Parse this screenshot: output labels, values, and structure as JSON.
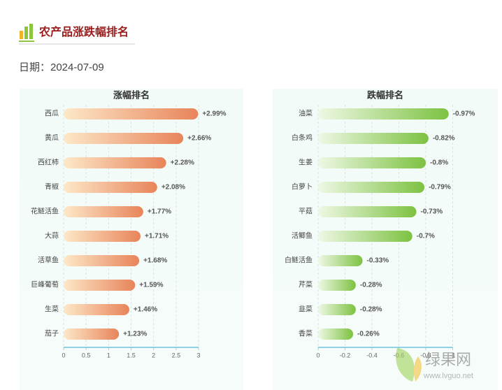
{
  "header": {
    "title": "农产品涨跌幅排名",
    "date": "日期：2024-07-09"
  },
  "chart_data": [
    {
      "type": "bar",
      "title": "涨幅排名",
      "categories": [
        "西瓜",
        "黄瓜",
        "西红柿",
        "青椒",
        "花鲢活鱼",
        "大蒜",
        "活草鱼",
        "巨峰葡萄",
        "生菜",
        "茄子"
      ],
      "values": [
        2.99,
        2.66,
        2.28,
        2.08,
        1.77,
        1.71,
        1.68,
        1.59,
        1.46,
        1.23
      ],
      "value_labels": [
        "+2.99%",
        "+2.66%",
        "+2.28%",
        "+2.08%",
        "+1.77%",
        "+1.71%",
        "+1.68%",
        "+1.59%",
        "+1.46%",
        "+1.23%"
      ],
      "color": "#e8845a",
      "color_light": "#fde8c8",
      "xlim": [
        0,
        3
      ],
      "xticks": [
        0,
        0.5,
        1,
        1.5,
        2,
        2.5,
        3
      ],
      "grid": true
    },
    {
      "type": "bar",
      "title": "跌幅排名",
      "categories": [
        "油菜",
        "白条鸡",
        "生姜",
        "白萝卜",
        "平菇",
        "活鲫鱼",
        "白鲢活鱼",
        "芹菜",
        "韭菜",
        "香菜"
      ],
      "values": [
        -0.97,
        -0.82,
        -0.8,
        -0.79,
        -0.73,
        -0.7,
        -0.33,
        -0.28,
        -0.28,
        -0.26
      ],
      "value_labels": [
        "-0.97%",
        "-0.82%",
        "-0.8%",
        "-0.79%",
        "-0.73%",
        "-0.7%",
        "-0.33%",
        "-0.28%",
        "-0.28%",
        "-0.26%"
      ],
      "color": "#7dc242",
      "color_light": "#eef8e4",
      "xlim": [
        0,
        -1
      ],
      "xticks": [
        0,
        -0.2,
        -0.4,
        -0.6,
        -0.8,
        -1
      ],
      "grid": true
    }
  ],
  "watermark": {
    "name": "绿果网",
    "url": "www.lvguo.net"
  }
}
